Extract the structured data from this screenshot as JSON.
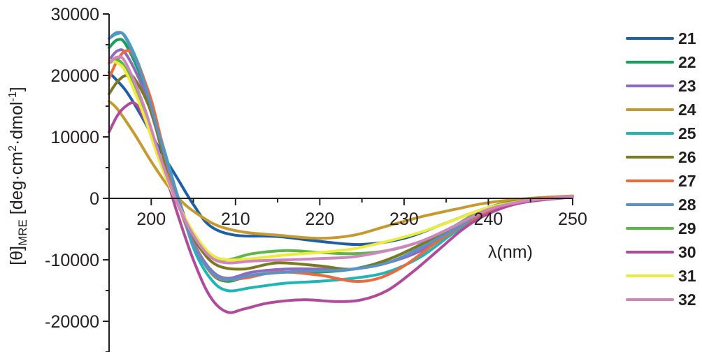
{
  "chart_data": {
    "type": "line",
    "ylabel_main": "[θ]",
    "ylabel_sub": "MRE",
    "ylabel_rest": " [deg·cm",
    "ylabel_sup1": "2",
    "ylabel_mid": "·dmol",
    "ylabel_sup2": "-1",
    "ylabel_end": "]",
    "xlabel": "λ(nm)",
    "xlim": [
      195,
      250
    ],
    "ylim": [
      -25000,
      30000
    ],
    "x_ticks": [
      200,
      210,
      220,
      230,
      240,
      250
    ],
    "y_ticks": [
      30000,
      20000,
      10000,
      0,
      -10000,
      -20000
    ],
    "legend_position": "right",
    "series": [
      {
        "name": "21",
        "color": "#1f5fa8",
        "points": [
          [
            195,
            20500
          ],
          [
            197,
            17500
          ],
          [
            199,
            13000
          ],
          [
            201,
            8000
          ],
          [
            203,
            3500
          ],
          [
            205,
            -1000
          ],
          [
            207,
            -4500
          ],
          [
            210,
            -6000
          ],
          [
            215,
            -6200
          ],
          [
            220,
            -7000
          ],
          [
            225,
            -7500
          ],
          [
            230,
            -6500
          ],
          [
            235,
            -4000
          ],
          [
            240,
            -1500
          ],
          [
            245,
            -300
          ],
          [
            250,
            300
          ]
        ]
      },
      {
        "name": "22",
        "color": "#15a05a",
        "points": [
          [
            195,
            24500
          ],
          [
            196,
            25800
          ],
          [
            197,
            25000
          ],
          [
            199,
            19000
          ],
          [
            201,
            10000
          ],
          [
            203,
            1000
          ],
          [
            205,
            -7000
          ],
          [
            207,
            -12000
          ],
          [
            209,
            -13500
          ],
          [
            212,
            -12500
          ],
          [
            216,
            -12000
          ],
          [
            220,
            -12000
          ],
          [
            224,
            -11500
          ],
          [
            228,
            -10000
          ],
          [
            232,
            -7500
          ],
          [
            236,
            -4500
          ],
          [
            240,
            -1500
          ],
          [
            245,
            -200
          ],
          [
            250,
            300
          ]
        ]
      },
      {
        "name": "23",
        "color": "#8e6bbd",
        "points": [
          [
            195,
            22500
          ],
          [
            196,
            24000
          ],
          [
            197,
            23500
          ],
          [
            199,
            18000
          ],
          [
            201,
            9500
          ],
          [
            203,
            1000
          ],
          [
            205,
            -7000
          ],
          [
            207,
            -11500
          ],
          [
            209,
            -13000
          ],
          [
            212,
            -12000
          ],
          [
            216,
            -11500
          ],
          [
            220,
            -11500
          ],
          [
            224,
            -11500
          ],
          [
            228,
            -10500
          ],
          [
            232,
            -8500
          ],
          [
            236,
            -5000
          ],
          [
            240,
            -1800
          ],
          [
            245,
            -300
          ],
          [
            250,
            300
          ]
        ]
      },
      {
        "name": "24",
        "color": "#c69a2e",
        "points": [
          [
            195,
            15800
          ],
          [
            196,
            14500
          ],
          [
            198,
            10500
          ],
          [
            200,
            6000
          ],
          [
            202,
            2000
          ],
          [
            204,
            -1000
          ],
          [
            206,
            -3000
          ],
          [
            208,
            -4500
          ],
          [
            211,
            -5500
          ],
          [
            215,
            -6000
          ],
          [
            220,
            -6500
          ],
          [
            224,
            -6000
          ],
          [
            228,
            -4500
          ],
          [
            232,
            -3000
          ],
          [
            236,
            -1800
          ],
          [
            240,
            -700
          ],
          [
            245,
            0
          ],
          [
            250,
            400
          ]
        ]
      },
      {
        "name": "25",
        "color": "#1eb6b6",
        "points": [
          [
            195,
            26000
          ],
          [
            196,
            26800
          ],
          [
            197,
            26200
          ],
          [
            199,
            20000
          ],
          [
            201,
            10500
          ],
          [
            203,
            1000
          ],
          [
            205,
            -8000
          ],
          [
            207,
            -13000
          ],
          [
            209,
            -15000
          ],
          [
            212,
            -14500
          ],
          [
            216,
            -13800
          ],
          [
            220,
            -13500
          ],
          [
            224,
            -13000
          ],
          [
            228,
            -12000
          ],
          [
            232,
            -9500
          ],
          [
            236,
            -5500
          ],
          [
            240,
            -2000
          ],
          [
            245,
            -300
          ],
          [
            250,
            300
          ]
        ]
      },
      {
        "name": "26",
        "color": "#7a7a20",
        "points": [
          [
            195,
            17000
          ],
          [
            196,
            19000
          ],
          [
            197,
            20000
          ],
          [
            198,
            19500
          ],
          [
            200,
            14000
          ],
          [
            202,
            4000
          ],
          [
            204,
            -3500
          ],
          [
            206,
            -8500
          ],
          [
            208,
            -11000
          ],
          [
            211,
            -11500
          ],
          [
            215,
            -10500
          ],
          [
            220,
            -11000
          ],
          [
            224,
            -11500
          ],
          [
            228,
            -10000
          ],
          [
            232,
            -7500
          ],
          [
            236,
            -4500
          ],
          [
            240,
            -1500
          ],
          [
            245,
            -200
          ],
          [
            250,
            300
          ]
        ]
      },
      {
        "name": "27",
        "color": "#ee6a3a",
        "points": [
          [
            195,
            19500
          ],
          [
            196,
            22500
          ],
          [
            197,
            24000
          ],
          [
            198,
            23000
          ],
          [
            200,
            16000
          ],
          [
            202,
            5000
          ],
          [
            204,
            -4000
          ],
          [
            206,
            -10000
          ],
          [
            208,
            -13000
          ],
          [
            211,
            -13000
          ],
          [
            215,
            -12000
          ],
          [
            220,
            -12500
          ],
          [
            224,
            -13500
          ],
          [
            227,
            -13000
          ],
          [
            230,
            -11000
          ],
          [
            234,
            -7000
          ],
          [
            238,
            -3500
          ],
          [
            242,
            -1000
          ],
          [
            246,
            0
          ],
          [
            250,
            300
          ]
        ]
      },
      {
        "name": "28",
        "color": "#5a92c8",
        "points": [
          [
            195,
            26000
          ],
          [
            196,
            27000
          ],
          [
            197,
            26000
          ],
          [
            199,
            19500
          ],
          [
            201,
            10000
          ],
          [
            203,
            800
          ],
          [
            205,
            -7500
          ],
          [
            207,
            -11800
          ],
          [
            209,
            -13200
          ],
          [
            212,
            -12500
          ],
          [
            216,
            -12000
          ],
          [
            220,
            -11800
          ],
          [
            224,
            -11500
          ],
          [
            228,
            -10500
          ],
          [
            232,
            -8000
          ],
          [
            236,
            -5000
          ],
          [
            240,
            -1800
          ],
          [
            245,
            -300
          ],
          [
            250,
            300
          ]
        ]
      },
      {
        "name": "29",
        "color": "#5cb747",
        "points": [
          [
            195,
            22000
          ],
          [
            196,
            22500
          ],
          [
            197,
            21000
          ],
          [
            199,
            15000
          ],
          [
            201,
            7000
          ],
          [
            203,
            -500
          ],
          [
            205,
            -6000
          ],
          [
            207,
            -9500
          ],
          [
            209,
            -10000
          ],
          [
            212,
            -9000
          ],
          [
            216,
            -8500
          ],
          [
            220,
            -8800
          ],
          [
            224,
            -9000
          ],
          [
            228,
            -8500
          ],
          [
            232,
            -7000
          ],
          [
            236,
            -4500
          ],
          [
            240,
            -1500
          ],
          [
            245,
            -300
          ],
          [
            250,
            300
          ]
        ]
      },
      {
        "name": "30",
        "color": "#b24a9c",
        "points": [
          [
            195,
            10800
          ],
          [
            196,
            13500
          ],
          [
            197,
            15000
          ],
          [
            198,
            15500
          ],
          [
            199,
            13500
          ],
          [
            201,
            7000
          ],
          [
            203,
            -2000
          ],
          [
            205,
            -10000
          ],
          [
            207,
            -16000
          ],
          [
            209,
            -18500
          ],
          [
            211,
            -18000
          ],
          [
            214,
            -17000
          ],
          [
            218,
            -16500
          ],
          [
            222,
            -16800
          ],
          [
            225,
            -16500
          ],
          [
            228,
            -15000
          ],
          [
            231,
            -12000
          ],
          [
            234,
            -8500
          ],
          [
            237,
            -5000
          ],
          [
            240,
            -2500
          ],
          [
            244,
            -700
          ],
          [
            250,
            200
          ]
        ]
      },
      {
        "name": "31",
        "color": "#ecec3c",
        "points": [
          [
            195,
            22500
          ],
          [
            196,
            22000
          ],
          [
            197,
            20500
          ],
          [
            199,
            14000
          ],
          [
            201,
            6000
          ],
          [
            203,
            -500
          ],
          [
            205,
            -5500
          ],
          [
            207,
            -9000
          ],
          [
            209,
            -10000
          ],
          [
            212,
            -9800
          ],
          [
            216,
            -9200
          ],
          [
            220,
            -8800
          ],
          [
            224,
            -8200
          ],
          [
            228,
            -7000
          ],
          [
            232,
            -5500
          ],
          [
            236,
            -3500
          ],
          [
            240,
            -1500
          ],
          [
            245,
            -300
          ],
          [
            250,
            300
          ]
        ]
      },
      {
        "name": "32",
        "color": "#cf86bf",
        "points": [
          [
            195,
            22000
          ],
          [
            196,
            23000
          ],
          [
            197,
            22000
          ],
          [
            199,
            15500
          ],
          [
            201,
            7000
          ],
          [
            203,
            -500
          ],
          [
            205,
            -6000
          ],
          [
            207,
            -9500
          ],
          [
            209,
            -10500
          ],
          [
            212,
            -10200
          ],
          [
            216,
            -10000
          ],
          [
            220,
            -9800
          ],
          [
            224,
            -9500
          ],
          [
            228,
            -8500
          ],
          [
            232,
            -7000
          ],
          [
            236,
            -4500
          ],
          [
            240,
            -1800
          ],
          [
            245,
            -300
          ],
          [
            250,
            300
          ]
        ]
      }
    ]
  }
}
